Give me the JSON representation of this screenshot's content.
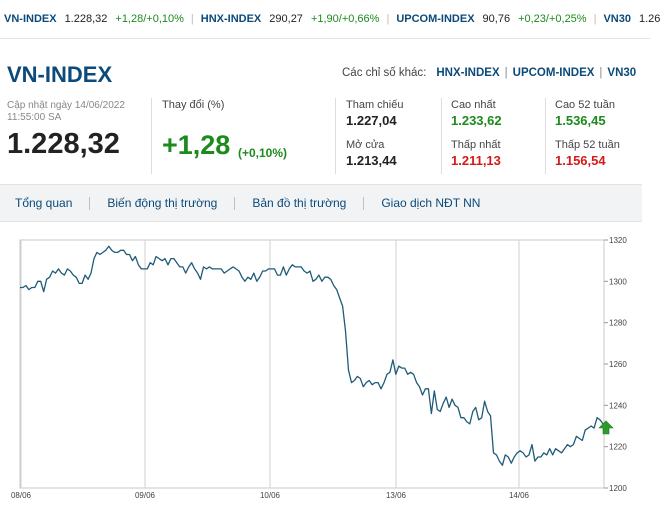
{
  "ticker": [
    {
      "symbol": "VN-INDEX",
      "value": "1.228,32",
      "change": "+1,28/+0,10%"
    },
    {
      "symbol": "HNX-INDEX",
      "value": "290,27",
      "change": "+1,90/+0,66%"
    },
    {
      "symbol": "UPCOM-INDEX",
      "value": "90,76",
      "change": "+0,23/+0,25%"
    },
    {
      "symbol": "VN30",
      "value": "1.26",
      "change": ""
    }
  ],
  "header": {
    "title": "VN-INDEX",
    "other_label": "Các chỉ số khác:",
    "other_links": [
      "HNX-INDEX",
      "UPCOM-INDEX",
      "VN30"
    ]
  },
  "summary": {
    "updated_line1": "Cập nhật ngày 14/06/2022",
    "updated_line2": "11:55:00 SA",
    "price": "1.228,32",
    "change_label": "Thay đổi (%)",
    "change": "+1,28",
    "change_pct": "(+0,10%)"
  },
  "stats": {
    "ref_label": "Tham chiếu",
    "ref": "1.227,04",
    "open_label": "Mở cửa",
    "open": "1.213,44",
    "high_label": "Cao nhất",
    "high": "1.233,62",
    "low_label": "Thấp nhất",
    "low": "1.211,13",
    "high52_label": "Cao 52 tuần",
    "high52": "1.536,45",
    "low52_label": "Thấp 52 tuần",
    "low52": "1.156,54"
  },
  "tabs": [
    "Tổng quan",
    "Biến động thị trường",
    "Bản đồ thị trường",
    "Giao dịch NĐT NN"
  ],
  "colors": {
    "brand": "#0b4a7a",
    "up": "#1d8a1d",
    "down": "#d41a1a",
    "line": "#1f5b78"
  },
  "chart_data": {
    "type": "line",
    "x_labels": [
      "08/06",
      "09/06",
      "10/06",
      "13/06",
      "14/06"
    ],
    "y_ticks": [
      1200,
      1220,
      1240,
      1260,
      1280,
      1300,
      1320
    ],
    "ylim": [
      1200,
      1320
    ],
    "marker_icon": "up-arrow-icon",
    "series": [
      {
        "values": [
          1297,
          1297,
          1298,
          1296,
          1297,
          1297,
          1300,
          1300,
          1295,
          1301,
          1302,
          1305,
          1304,
          1306,
          1304,
          1303,
          1306,
          1305,
          1303,
          1302,
          1299,
          1299,
          1303,
          1301,
          1304,
          1311,
          1314,
          1313,
          1314,
          1315,
          1317,
          1315,
          1314,
          1314,
          1315,
          1315,
          1313,
          1313,
          1310,
          1312,
          1308,
          1306,
          1306,
          1306,
          1309,
          1308,
          1312,
          1311,
          1310,
          1311,
          1308,
          1311,
          1311,
          1309,
          1307,
          1307,
          1304,
          1307,
          1309,
          1306,
          1304,
          1301,
          1307,
          1306,
          1307,
          1306,
          1306,
          1306,
          1306,
          1304,
          1305,
          1306,
          1307,
          1306,
          1305,
          1302,
          1300,
          1302,
          1301,
          1304,
          1300,
          1302,
          1305,
          1305,
          1306,
          1306,
          1306,
          1303,
          1303,
          1307,
          1303,
          1306,
          1308,
          1307,
          1307,
          1307,
          1305,
          1304,
          1305,
          1300,
          1301,
          1303,
          1300,
          1302,
          1302,
          1301,
          1298,
          1296,
          1292,
          1288,
          1276,
          1257,
          1251,
          1252,
          1254,
          1253,
          1249,
          1251,
          1252,
          1250,
          1251,
          1251,
          1248,
          1251,
          1255,
          1256,
          1262,
          1255,
          1259,
          1258,
          1258,
          1255,
          1256,
          1255,
          1251,
          1249,
          1245,
          1248,
          1248,
          1236,
          1247,
          1238,
          1237,
          1241,
          1244,
          1239,
          1243,
          1240,
          1239,
          1234,
          1234,
          1232,
          1231,
          1237,
          1239,
          1233,
          1234,
          1242,
          1237,
          1235,
          1217,
          1216,
          1213,
          1211,
          1216,
          1215,
          1212,
          1215,
          1217,
          1218,
          1217,
          1215,
          1216,
          1221,
          1213,
          1215,
          1215,
          1217,
          1216,
          1219,
          1216,
          1219,
          1218,
          1217,
          1219,
          1221,
          1220,
          1221,
          1225,
          1224,
          1223,
          1228,
          1229,
          1230,
          1229,
          1234,
          1233,
          1231
        ]
      }
    ]
  }
}
